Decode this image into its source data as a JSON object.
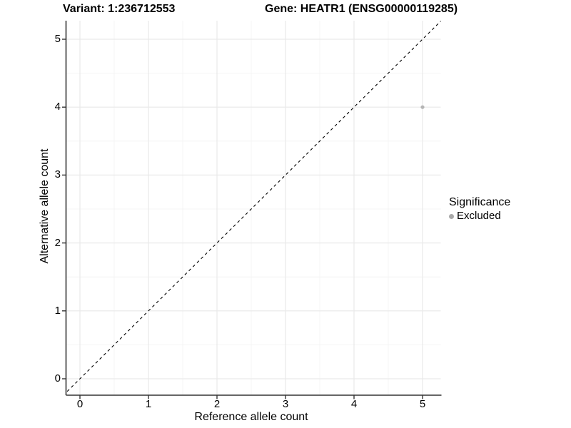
{
  "titles": {
    "left": "Variant: 1:236712553",
    "right": "Gene: HEATR1 (ENSG00000119285)"
  },
  "chart_data": {
    "type": "scatter",
    "title_left": "Variant: 1:236712553",
    "title_right": "Gene: HEATR1 (ENSG00000119285)",
    "xlabel": "Reference allele count",
    "ylabel": "Alternative allele count",
    "xlim": [
      -0.2,
      5.27
    ],
    "ylim": [
      -0.24,
      5.27
    ],
    "xticks": [
      0,
      1,
      2,
      3,
      4,
      5
    ],
    "yticks": [
      0,
      1,
      2,
      3,
      4,
      5
    ],
    "grid": "major and minor on, white panel",
    "points": [
      {
        "x": 5,
        "y": 4,
        "series": "Excluded",
        "color": "#b5b5b5",
        "radius": 2.6
      }
    ],
    "reference_line": {
      "kind": "abline",
      "slope": 1,
      "intercept": 0,
      "style": "dashed",
      "color": "#000000"
    },
    "legend": {
      "title": "Significance",
      "position": "right",
      "items": [
        {
          "label": "Excluded",
          "color": "#a9a9a9",
          "marker": "circle"
        }
      ]
    },
    "colors": {
      "grid_major": "#e9e9e9",
      "grid_minor": "#f4f4f4",
      "axis_line": "#333333",
      "tick_mark": "#333333",
      "text": "#000000",
      "background": "#ffffff"
    }
  }
}
